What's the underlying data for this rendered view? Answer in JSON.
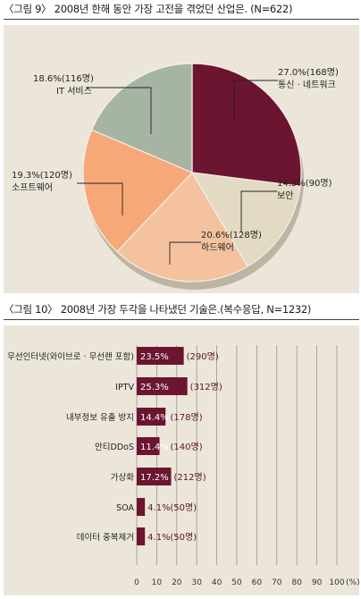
{
  "figure1": {
    "title": "〈그림 9〉 2008년 한해 동안 가장 고전을 겪었던 산업은. (N=622)"
  },
  "figure2": {
    "title": "〈그림 10〉 2008년 가장 두각을 나타냈던 기술은.(복수응답, N=1232)"
  },
  "colors": {
    "network": "#6b1530",
    "security": "#e2dac3",
    "hardware": "#f5c29f",
    "software": "#f6a878",
    "it_service": "#a6b5a3",
    "bar": "#6b1530",
    "panel": "#ece6da"
  },
  "chart_data": [
    {
      "type": "pie",
      "slices": [
        {
          "name": "통신 · 네트워크",
          "percent": 27.0,
          "count_label": "27.0%(168명)",
          "color": "#6b1530"
        },
        {
          "name": "보안",
          "percent": 14.5,
          "count_label": "14.5%(90명)",
          "color": "#e2dac3"
        },
        {
          "name": "하드웨어",
          "percent": 20.6,
          "count_label": "20.6%(128명)",
          "color": "#f5c29f"
        },
        {
          "name": "소프트웨어",
          "percent": 19.3,
          "count_label": "19.3%(120명)",
          "color": "#f6a878"
        },
        {
          "name": "IT 서비스",
          "percent": 18.6,
          "count_label": "18.6%(116명)",
          "color": "#a6b5a3"
        }
      ]
    },
    {
      "type": "bar",
      "orientation": "horizontal",
      "categories": [
        "무선인터넷(와이브로 · 무선랜 포함)",
        "IPTV",
        "내부정보 유출 방지",
        "안티DDoS",
        "가상화",
        "SOA",
        "데이터 중복제거"
      ],
      "values": [
        23.5,
        25.3,
        14.4,
        11.4,
        17.2,
        4.1,
        4.1
      ],
      "value_labels": [
        "23.5%",
        "25.3%",
        "14.4%",
        "11.4%",
        "17.2%",
        "4.1%",
        "4.1%"
      ],
      "count_labels": [
        "(290명)",
        "(312명)",
        "(178명)",
        "(140명)",
        "(212명)",
        "(50명)",
        "(50명)"
      ],
      "xlim": [
        0,
        100
      ],
      "xticks": [
        "0",
        "10",
        "20",
        "30",
        "40",
        "50",
        "60",
        "70",
        "80",
        "90",
        "100"
      ],
      "xunit": "(%)",
      "grid": true
    }
  ]
}
